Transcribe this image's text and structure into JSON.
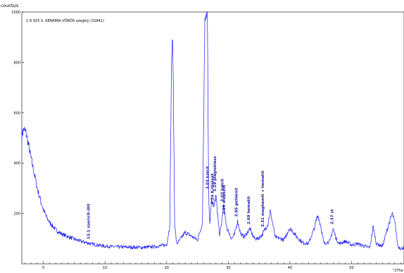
{
  "chart_data": {
    "type": "line",
    "title": "1 R 925 S. KERÁMIA VÖRÖS szegély (32841)",
    "ylabel": "counts/s",
    "xlabel": "°2The",
    "xlim": [
      -3.5,
      58.5
    ],
    "ylim": [
      0,
      1000
    ],
    "y_ticks": [
      "1000",
      "800",
      "600",
      "400",
      "200"
    ],
    "x_ticks": [
      "0",
      "10",
      "20",
      "30",
      "40",
      "50"
    ],
    "line_color": "#1a1aff",
    "series": [
      {
        "x": [
          -3.5,
          -3.2,
          -2.8,
          -2.4,
          -2.0,
          -1.5,
          -1.0,
          -0.5,
          0.0,
          0.5,
          1.0,
          1.5,
          2.0,
          3.0,
          4.0,
          5.0,
          6.0,
          7.0,
          8.0,
          10.0,
          12.0,
          14.0,
          16.0,
          18.0,
          20.0,
          20.5,
          20.8,
          21.0,
          21.3,
          21.6,
          22.0,
          23.0,
          24.0,
          25.0,
          25.8,
          26.2,
          26.6,
          26.8,
          27.0,
          27.3,
          27.6,
          28.0,
          28.3,
          28.6,
          28.9,
          29.2,
          29.5,
          29.8,
          30.1,
          30.5,
          31.0,
          31.5,
          32.0,
          32.3,
          32.7,
          33.5,
          34.0,
          34.3,
          34.8,
          35.5,
          36.0,
          36.4,
          36.8,
          37.2,
          37.6,
          38.5,
          39.0,
          39.4,
          39.8,
          40.3,
          41.0,
          42.0,
          43.0,
          44.0,
          44.5,
          45.0,
          45.5,
          46.5,
          47.0,
          47.5,
          48.0,
          49.0,
          50.0,
          51.0,
          52.0,
          53.0,
          53.5,
          54.0,
          55.0,
          56.0,
          56.6,
          57.1,
          57.5,
          58.0,
          58.5
        ],
        "y": [
          510,
          535,
          520,
          470,
          420,
          360,
          300,
          255,
          215,
          185,
          165,
          150,
          135,
          118,
          108,
          98,
          90,
          84,
          78,
          70,
          67,
          66,
          65,
          68,
          75,
          150,
          840,
          880,
          160,
          80,
          90,
          125,
          110,
          95,
          160,
          990,
          1000,
          280,
          150,
          260,
          220,
          270,
          190,
          110,
          160,
          230,
          180,
          140,
          125,
          100,
          115,
          170,
          120,
          110,
          110,
          140,
          110,
          100,
          100,
          115,
          140,
          155,
          210,
          160,
          105,
          100,
          95,
          110,
          140,
          135,
          110,
          85,
          80,
          145,
          195,
          150,
          80,
          90,
          140,
          100,
          80,
          90,
          75,
          80,
          70,
          65,
          150,
          80,
          70,
          155,
          200,
          155,
          70,
          60,
          65
        ]
      }
    ],
    "annotations": [
      {
        "x": 7.5,
        "text": "13.1 szericit-illit"
      },
      {
        "x": 26.8,
        "text": "3.03 kalcit"
      },
      {
        "x": 27.6,
        "text": "3.24 K-földpát"
      },
      {
        "x": 28.0,
        "text": "3.19 plagioklász"
      },
      {
        "x": 29.2,
        "text": "3.03 kalcit"
      },
      {
        "x": 29.5,
        "text": "2.99 diopszid"
      },
      {
        "x": 31.5,
        "text": "2.85 gehlenit"
      },
      {
        "x": 33.5,
        "text": "2.69 hematit"
      },
      {
        "x": 35.8,
        "text": "2.51 maghemit + hematit"
      },
      {
        "x": 47.0,
        "text": "2.37 st"
      }
    ]
  }
}
